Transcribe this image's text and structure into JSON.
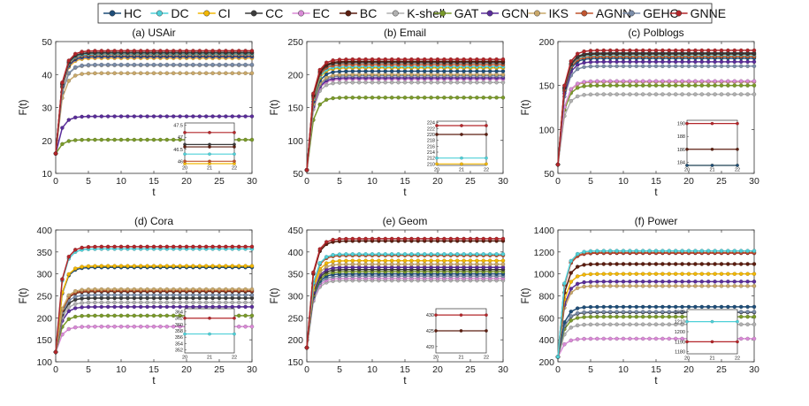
{
  "chart_data": {
    "type": "line",
    "x_label": "t",
    "y_label": "F(t)",
    "x": [
      0,
      1,
      2,
      3,
      4,
      5,
      6,
      7,
      8,
      9,
      10,
      11,
      12,
      13,
      14,
      15,
      16,
      17,
      18,
      19,
      20,
      21,
      22,
      23,
      24,
      25,
      26,
      27,
      28,
      29,
      30
    ],
    "xlim": [
      0,
      30
    ],
    "x_ticks": [
      0,
      5,
      10,
      15,
      20,
      25,
      30
    ],
    "inset_x_ticks": [
      20,
      21,
      22
    ],
    "legend": {
      "placement": "top-center",
      "entries": [
        "HC",
        "DC",
        "CI",
        "CC",
        "EC",
        "BC",
        "K-shell",
        "GAT",
        "GCN",
        "IKS",
        "AGNN",
        "GEHC",
        "GNNE"
      ]
    },
    "colors": {
      "HC": "#1f4e79",
      "DC": "#4fd0d8",
      "CI": "#f2b705",
      "CC": "#3b3b3b",
      "EC": "#d98ad6",
      "BC": "#5c1e10",
      "K-shell": "#b0b0b0",
      "GAT": "#7a9a2a",
      "GCN": "#5a2d9a",
      "IKS": "#c9a86a",
      "AGNN": "#c0552f",
      "GEHC": "#7a8ca8",
      "GNNE": "#b3262a"
    },
    "panels": [
      {
        "title": "(a) USAir",
        "start": 16,
        "ylim": [
          10,
          50
        ],
        "y_ticks": [
          10,
          20,
          30,
          40,
          50
        ],
        "final": {
          "HC": 45.5,
          "DC": 46.3,
          "CI": 45.0,
          "CC": 46.7,
          "EC": 45.3,
          "BC": 46.6,
          "K-shell": 42.8,
          "GAT": 20.2,
          "GCN": 27.3,
          "IKS": 40.4,
          "AGNN": 46.0,
          "GEHC": 43.0,
          "GNNE": 47.2
        },
        "inset": {
          "ylim": [
            45.9,
            47.6
          ],
          "y_ticks": [
            47.5,
            47.0,
            46.5,
            46.0
          ],
          "y_tick_labels": [
            "47.5",
            "47",
            "46.5",
            "46"
          ],
          "series": [
            "GNNE",
            "CC",
            "BC",
            "DC",
            "CI",
            "AGNN"
          ]
        }
      },
      {
        "title": "(b) Email",
        "start": 55,
        "ylim": [
          50,
          250
        ],
        "y_ticks": [
          50,
          100,
          150,
          200,
          250
        ],
        "final": {
          "HC": 205,
          "DC": 212,
          "CI": 210,
          "CC": 218,
          "EC": 193,
          "BC": 220,
          "K-shell": 188,
          "GAT": 165,
          "GCN": 195,
          "IKS": 200,
          "AGNN": 215,
          "GEHC": 198,
          "GNNE": 223
        },
        "inset": {
          "ylim": [
            209.5,
            224.5
          ],
          "y_ticks": [
            224,
            222,
            220,
            218,
            216,
            214,
            212,
            210
          ],
          "series": [
            "GNNE",
            "BC",
            "DC",
            "CI"
          ]
        }
      },
      {
        "title": "(c) Polblogs",
        "start": 60,
        "ylim": [
          50,
          200
        ],
        "y_ticks": [
          50,
          100,
          150,
          200
        ],
        "final": {
          "HC": 181,
          "DC": 185,
          "CI": 183,
          "CC": 187,
          "EC": 155,
          "BC": 186,
          "K-shell": 140,
          "GAT": 150,
          "GCN": 177,
          "IKS": 154,
          "AGNN": 183,
          "GEHC": 172,
          "GNNE": 190
        },
        "inset": {
          "ylim": [
            183.5,
            190.5
          ],
          "y_ticks": [
            190,
            188,
            186,
            184
          ],
          "series": [
            "GNNE",
            "CI",
            "BC",
            "HC"
          ]
        }
      },
      {
        "title": "(d) Cora",
        "start": 122,
        "ylim": [
          100,
          400
        ],
        "y_ticks": [
          100,
          150,
          200,
          250,
          300,
          350,
          400
        ],
        "final": {
          "HC": 315,
          "DC": 357,
          "CI": 318,
          "CC": 245,
          "EC": 180,
          "BC": 260,
          "K-shell": 235,
          "GAT": 205,
          "GCN": 225,
          "IKS": 265,
          "AGNN": 262,
          "GEHC": 252,
          "GNNE": 362
        },
        "inset": {
          "ylim": [
            351,
            365
          ],
          "y_ticks": [
            364,
            362,
            360,
            358,
            356,
            354,
            352
          ],
          "series": [
            "GNNE",
            "DC"
          ]
        }
      },
      {
        "title": "(e) Geom",
        "start": 182,
        "ylim": [
          150,
          450
        ],
        "y_ticks": [
          150,
          200,
          250,
          300,
          350,
          400,
          450
        ],
        "final": {
          "HC": 350,
          "DC": 395,
          "CI": 380,
          "CC": 360,
          "EC": 340,
          "BC": 425,
          "K-shell": 335,
          "GAT": 355,
          "GCN": 365,
          "IKS": 372,
          "AGNN": 392,
          "GEHC": 345,
          "GNNE": 430
        },
        "inset": {
          "ylim": [
            418,
            432
          ],
          "y_ticks": [
            430,
            425,
            420
          ],
          "series": [
            "GNNE",
            "BC"
          ]
        }
      },
      {
        "title": "(f) Power",
        "start": 245,
        "ylim": [
          200,
          1400
        ],
        "y_ticks": [
          200,
          400,
          600,
          800,
          1000,
          1200,
          1400
        ],
        "final": {
          "HC": 700,
          "DC": 1210,
          "CI": 1000,
          "CC": 650,
          "EC": 410,
          "BC": 1090,
          "K-shell": 540,
          "GAT": 610,
          "GCN": 930,
          "IKS": 890,
          "AGNN": 1195,
          "GEHC": 655,
          "GNNE": 1190
        },
        "inset": {
          "ylim": [
            1178,
            1222
          ],
          "y_ticks": [
            1220,
            1210,
            1200,
            1190,
            1180
          ],
          "series": [
            "DC",
            "GNNE"
          ]
        }
      }
    ]
  }
}
